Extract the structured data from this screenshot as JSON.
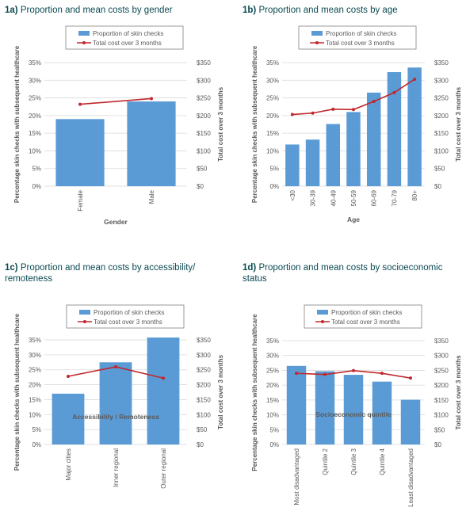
{
  "legend": {
    "bar_label": "Proportion of skin checks",
    "line_label": "Total cost over 3 months"
  },
  "axis_titles": {
    "left": "Percentage skin checks with subsequent healthcare",
    "right": "Total cost over 3 months"
  },
  "colors": {
    "bar": "#5b9bd5",
    "line": "#c0282d",
    "title": "#0b4a52",
    "grid": "#d9d9d9",
    "text": "#595959"
  },
  "chart_data": [
    {
      "type": "bar",
      "num": "1a)",
      "title": "Proportion and mean costs by gender",
      "xlabel": "Gender",
      "ylabel": "Percentage skin checks with subsequent healthcare",
      "y2label": "Total cost over 3 months",
      "categories": [
        "Female",
        "Male"
      ],
      "series": [
        {
          "name": "Proportion of skin checks",
          "axis": "left",
          "kind": "bar",
          "values": [
            19,
            24
          ]
        },
        {
          "name": "Total cost over 3 months",
          "axis": "right",
          "kind": "line",
          "values": [
            232,
            248
          ]
        }
      ],
      "ylim": [
        0,
        35
      ],
      "y2lim": [
        0,
        350
      ],
      "yticks": [
        "0%",
        "5%",
        "10%",
        "15%",
        "20%",
        "25%",
        "30%",
        "35%"
      ],
      "y2ticks": [
        "$0",
        "$50",
        "$100",
        "$150",
        "$200",
        "$250",
        "$300",
        "$350"
      ],
      "grid": true,
      "legend_position": "top"
    },
    {
      "type": "bar",
      "num": "1b)",
      "title": "Proportion and mean costs by age",
      "xlabel": "Age",
      "ylabel": "Percentage skin checks with subsequent healthcare",
      "y2label": "Total cost over 3 months",
      "categories": [
        "<30",
        "30-39",
        "40-49",
        "50-59",
        "60-69",
        "70-79",
        "80+"
      ],
      "series": [
        {
          "name": "Proportion of skin checks",
          "axis": "left",
          "kind": "bar",
          "values": [
            11.8,
            13.2,
            17.6,
            21,
            26.5,
            32.3,
            33.6
          ]
        },
        {
          "name": "Total cost over 3 months",
          "axis": "right",
          "kind": "line",
          "values": [
            203,
            207,
            218,
            217,
            240,
            265,
            303
          ]
        }
      ],
      "ylim": [
        0,
        35
      ],
      "y2lim": [
        0,
        350
      ],
      "yticks": [
        "0%",
        "5%",
        "10%",
        "15%",
        "20%",
        "25%",
        "30%",
        "35%"
      ],
      "y2ticks": [
        "$0",
        "$50",
        "$100",
        "$150",
        "$200",
        "$250",
        "$300",
        "$350"
      ],
      "grid": true,
      "legend_position": "top"
    },
    {
      "type": "bar",
      "num": "1c)",
      "title": "Proportion and mean costs by accessibility/ remoteness",
      "xlabel": "Accessibility / Remoteness",
      "ylabel": "Percentage skin checks with subsequent healthcare",
      "y2label": "Total cost over 3 months",
      "categories": [
        "Major cities",
        "Inner regional",
        "Outer regional"
      ],
      "series": [
        {
          "name": "Proportion of skin checks",
          "axis": "left",
          "kind": "bar",
          "values": [
            17,
            27.5,
            35.8
          ]
        },
        {
          "name": "Total cost over 3 months",
          "axis": "right",
          "kind": "line",
          "values": [
            228,
            260,
            222
          ]
        }
      ],
      "ylim": [
        0,
        35
      ],
      "y2lim": [
        0,
        350
      ],
      "yticks": [
        "0%",
        "5%",
        "10%",
        "15%",
        "20%",
        "25%",
        "30%",
        "35%"
      ],
      "y2ticks": [
        "$0",
        "$50",
        "$100",
        "$150",
        "$200",
        "$250",
        "$300",
        "$350"
      ],
      "grid": true,
      "legend_position": "top"
    },
    {
      "type": "bar",
      "num": "1d)",
      "title": "Proportion and mean costs by socioeconomic status",
      "xlabel": "Socioeconomic quintile",
      "ylabel": "Percentage skin checks with subsequent healthcare",
      "y2label": "Total cost over 3 months",
      "categories": [
        "Most disadvantaged",
        "Quintile 2",
        "Quintile 3",
        "Quintile 4",
        "Least disadvantaged"
      ],
      "series": [
        {
          "name": "Proportion of skin checks",
          "axis": "left",
          "kind": "bar",
          "values": [
            26.5,
            24.7,
            23.5,
            21.2,
            15.1
          ]
        },
        {
          "name": "Total cost over 3 months",
          "axis": "right",
          "kind": "line",
          "values": [
            240,
            236,
            249,
            240,
            224
          ]
        }
      ],
      "ylim": [
        0,
        35
      ],
      "y2lim": [
        0,
        350
      ],
      "yticks": [
        "0%",
        "5%",
        "10%",
        "15%",
        "20%",
        "25%",
        "30%",
        "35%"
      ],
      "y2ticks": [
        "$0",
        "$50",
        "$100",
        "$150",
        "$200",
        "$250",
        "$300",
        "$350"
      ],
      "grid": true,
      "legend_position": "top"
    }
  ]
}
